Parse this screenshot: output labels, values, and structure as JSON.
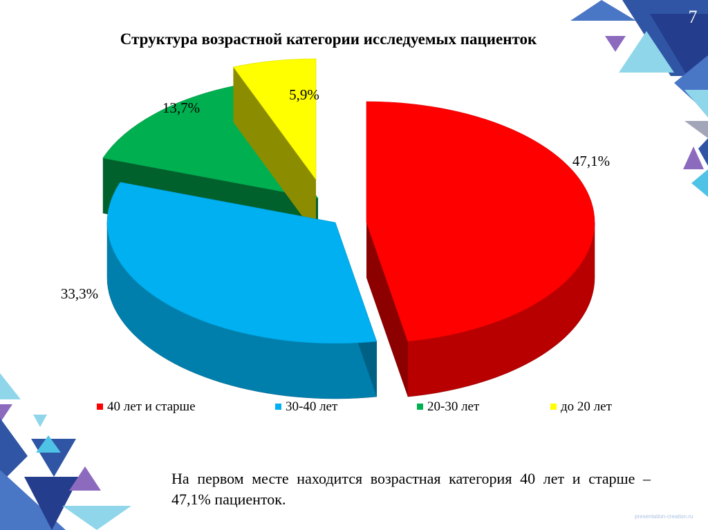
{
  "slide": {
    "number": "7",
    "title": "Структура возрастной категории исследуемых пациенток",
    "note": "На первом месте находится возрастная категория 40 лет и старше – 47,1% пациенток.",
    "watermark": "presentation-creation.ru"
  },
  "chart_data": {
    "type": "pie",
    "style": "3d-exploded",
    "title": "",
    "legend_position": "bottom",
    "categories": [
      "40 лет и старше",
      "30-40 лет",
      "20-30 лет",
      "до 20 лет"
    ],
    "values": [
      47.1,
      33.3,
      13.7,
      5.9
    ],
    "labels": [
      "47,1%",
      "33,3%",
      "13,7%",
      "5,9%"
    ],
    "colors": [
      "#ff0000",
      "#00b0f0",
      "#00b050",
      "#ffff00"
    ]
  }
}
